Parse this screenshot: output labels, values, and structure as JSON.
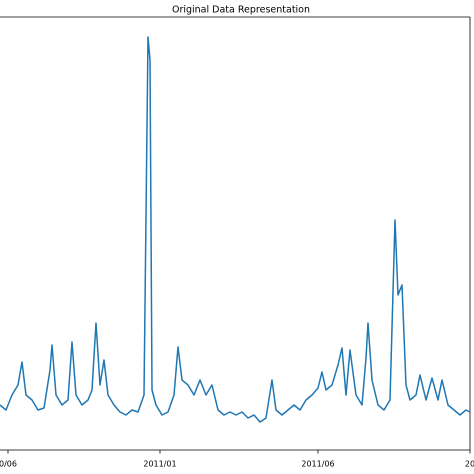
{
  "chart_data": {
    "type": "line",
    "title": "Original Data Representation",
    "x": [
      0,
      6,
      12,
      18,
      22,
      26,
      32,
      38,
      44,
      50,
      52,
      56,
      62,
      68,
      72,
      76,
      82,
      88,
      92,
      96,
      100,
      104,
      108,
      114,
      120,
      126,
      132,
      138,
      144,
      148,
      150,
      152,
      156,
      162,
      168,
      174,
      178,
      182,
      188,
      194,
      200,
      206,
      212,
      218,
      224,
      230,
      236,
      242,
      248,
      254,
      260,
      266,
      272,
      276,
      282,
      288,
      294,
      300,
      306,
      312,
      318,
      322,
      326,
      332,
      338,
      342,
      346,
      350,
      356,
      362,
      366,
      368,
      372,
      378,
      384,
      390,
      395,
      398,
      402,
      406,
      410,
      416,
      420,
      426,
      432,
      438,
      442,
      448,
      454,
      460,
      466,
      470
    ],
    "series": [
      {
        "color": "#1f77b4",
        "values": [
          45,
          40,
          55,
          65,
          88,
          55,
          50,
          40,
          42,
          80,
          105,
          55,
          45,
          50,
          108,
          55,
          45,
          50,
          60,
          127,
          65,
          90,
          55,
          45,
          38,
          35,
          40,
          38,
          55,
          413,
          390,
          60,
          45,
          35,
          38,
          55,
          103,
          70,
          65,
          55,
          70,
          55,
          65,
          40,
          35,
          38,
          35,
          38,
          32,
          35,
          28,
          32,
          70,
          40,
          35,
          40,
          45,
          40,
          50,
          55,
          62,
          78,
          60,
          65,
          85,
          102,
          55,
          100,
          55,
          45,
          92,
          127,
          70,
          45,
          40,
          50,
          230,
          155,
          165,
          65,
          50,
          55,
          75,
          50,
          72,
          50,
          70,
          45,
          40,
          35,
          40,
          38
        ]
      }
    ],
    "xlim": [
      0,
      470
    ],
    "xticks": [
      {
        "value": 8,
        "label": "0/06"
      },
      {
        "value": 160,
        "label": "2011/01"
      },
      {
        "value": 318,
        "label": "2011/06"
      },
      {
        "value": 470,
        "label": "20"
      }
    ],
    "ylim": [
      0,
      433
    ]
  }
}
